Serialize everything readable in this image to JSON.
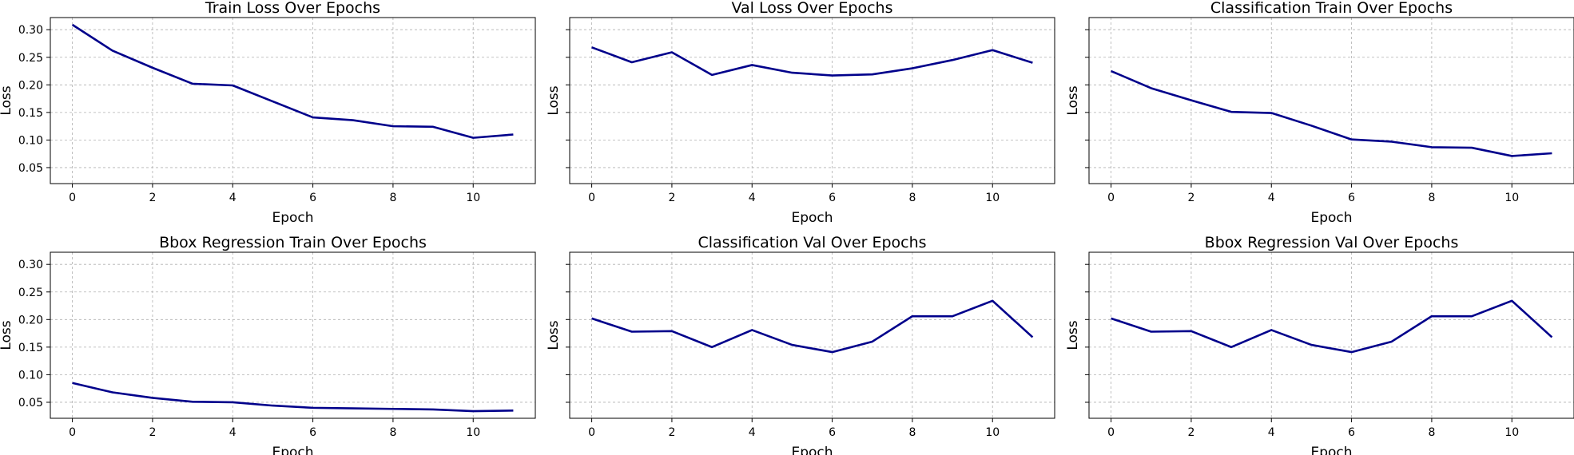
{
  "colors": {
    "line": "#00008b",
    "grid": "#b0b0b0"
  },
  "chart_data": [
    {
      "type": "line",
      "title": "Train Loss Over Epochs",
      "xlabel": "Epoch",
      "ylabel": "Loss",
      "x": [
        0,
        1,
        2,
        3,
        4,
        5,
        6,
        7,
        8,
        9,
        10,
        11
      ],
      "values": [
        0.309,
        0.262,
        0.231,
        0.202,
        0.199,
        0.17,
        0.141,
        0.136,
        0.125,
        0.124,
        0.104,
        0.11
      ],
      "xlim": [
        -0.55,
        11.55
      ],
      "ylim": [
        0.021,
        0.322
      ],
      "xticks": [
        0,
        2,
        4,
        6,
        8,
        10
      ],
      "yticks": [
        0.05,
        0.1,
        0.15,
        0.2,
        0.25,
        0.3
      ],
      "ytick_labels": [
        "0.05",
        "0.10",
        "0.15",
        "0.20",
        "0.25",
        "0.30"
      ],
      "grid": true
    },
    {
      "type": "line",
      "title": "Val Loss Over Epochs",
      "xlabel": "Epoch",
      "ylabel": "Loss",
      "x": [
        0,
        1,
        2,
        3,
        4,
        5,
        6,
        7,
        8,
        9,
        10,
        11
      ],
      "values": [
        0.268,
        0.241,
        0.259,
        0.218,
        0.236,
        0.222,
        0.217,
        0.219,
        0.23,
        0.245,
        0.263,
        0.24
      ],
      "xlim": [
        -0.55,
        11.55
      ],
      "ylim": [
        0.021,
        0.322
      ],
      "xticks": [
        0,
        2,
        4,
        6,
        8,
        10
      ],
      "yticks": [
        0.05,
        0.1,
        0.15,
        0.2,
        0.25,
        0.3
      ],
      "ytick_labels": [
        "",
        "",
        "",
        "",
        "",
        ""
      ],
      "grid": true
    },
    {
      "type": "line",
      "title": "Classification Train Over Epochs",
      "xlabel": "Epoch",
      "ylabel": "Loss",
      "x": [
        0,
        1,
        2,
        3,
        4,
        5,
        6,
        7,
        8,
        9,
        10,
        11
      ],
      "values": [
        0.225,
        0.194,
        0.172,
        0.151,
        0.149,
        0.126,
        0.101,
        0.097,
        0.087,
        0.086,
        0.071,
        0.076
      ],
      "xlim": [
        -0.55,
        11.55
      ],
      "ylim": [
        0.021,
        0.322
      ],
      "xticks": [
        0,
        2,
        4,
        6,
        8,
        10
      ],
      "yticks": [
        0.05,
        0.1,
        0.15,
        0.2,
        0.25,
        0.3
      ],
      "ytick_labels": [
        "",
        "",
        "",
        "",
        "",
        ""
      ],
      "grid": true
    },
    {
      "type": "line",
      "title": "Bbox Regression Train Over Epochs",
      "xlabel": "Epoch",
      "ylabel": "Loss",
      "x": [
        0,
        1,
        2,
        3,
        4,
        5,
        6,
        7,
        8,
        9,
        10,
        11
      ],
      "values": [
        0.085,
        0.068,
        0.058,
        0.051,
        0.05,
        0.044,
        0.04,
        0.039,
        0.038,
        0.037,
        0.034,
        0.035
      ],
      "xlim": [
        -0.55,
        11.55
      ],
      "ylim": [
        0.021,
        0.322
      ],
      "xticks": [
        0,
        2,
        4,
        6,
        8,
        10
      ],
      "yticks": [
        0.05,
        0.1,
        0.15,
        0.2,
        0.25,
        0.3
      ],
      "ytick_labels": [
        "0.05",
        "0.10",
        "0.15",
        "0.20",
        "0.25",
        "0.30"
      ],
      "grid": true
    },
    {
      "type": "line",
      "title": "Classification Val Over Epochs",
      "xlabel": "Epoch",
      "ylabel": "Loss",
      "x": [
        0,
        1,
        2,
        3,
        4,
        5,
        6,
        7,
        8,
        9,
        10,
        11
      ],
      "values": [
        0.202,
        0.178,
        0.179,
        0.15,
        0.181,
        0.154,
        0.141,
        0.16,
        0.206,
        0.206,
        0.234,
        0.168
      ],
      "xlim": [
        -0.55,
        11.55
      ],
      "ylim": [
        0.021,
        0.322
      ],
      "xticks": [
        0,
        2,
        4,
        6,
        8,
        10
      ],
      "yticks": [
        0.05,
        0.1,
        0.15,
        0.2,
        0.25,
        0.3
      ],
      "ytick_labels": [
        "",
        "",
        "",
        "",
        "",
        ""
      ],
      "grid": true
    },
    {
      "type": "line",
      "title": "Bbox Regression Val Over Epochs",
      "xlabel": "Epoch",
      "ylabel": "Loss",
      "x": [
        0,
        1,
        2,
        3,
        4,
        5,
        6,
        7,
        8,
        9,
        10,
        11
      ],
      "values": [
        0.202,
        0.178,
        0.179,
        0.15,
        0.181,
        0.154,
        0.141,
        0.16,
        0.206,
        0.206,
        0.234,
        0.168
      ],
      "xlim": [
        -0.55,
        11.55
      ],
      "ylim": [
        0.021,
        0.322
      ],
      "xticks": [
        0,
        2,
        4,
        6,
        8,
        10
      ],
      "yticks": [
        0.05,
        0.1,
        0.15,
        0.2,
        0.25,
        0.3
      ],
      "ytick_labels": [
        "",
        "",
        "",
        "",
        "",
        ""
      ],
      "grid": true
    }
  ]
}
